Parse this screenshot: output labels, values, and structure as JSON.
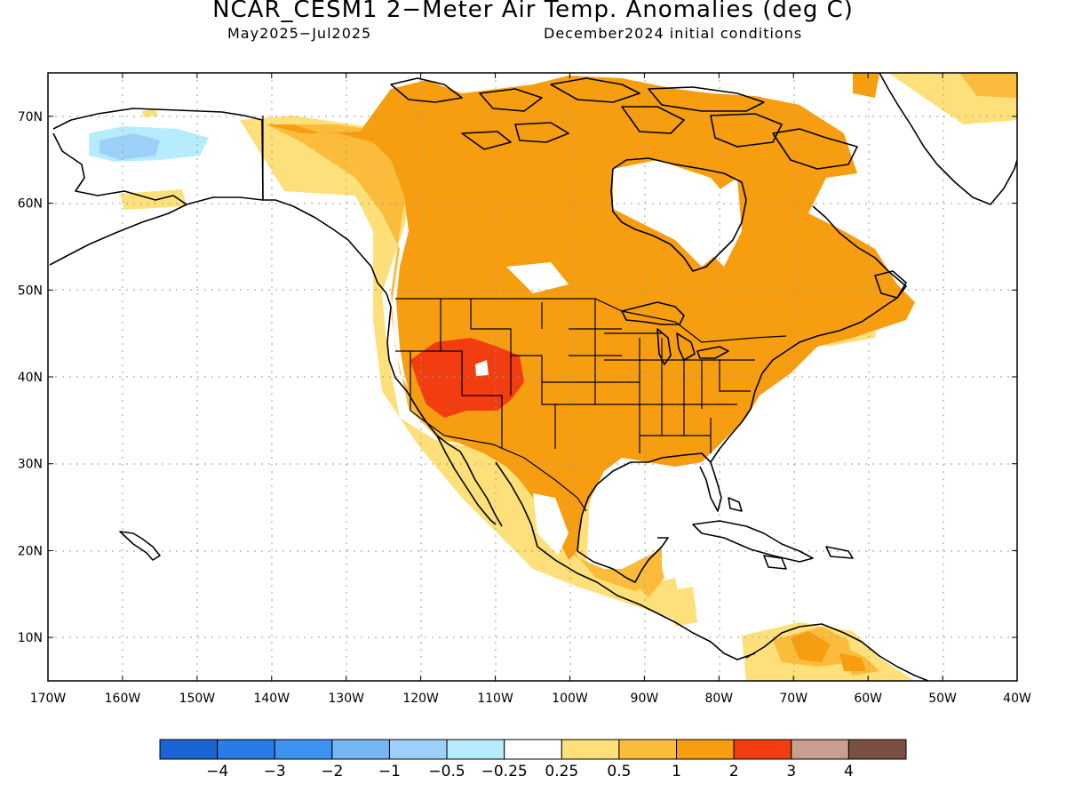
{
  "header": {
    "title": "NCAR_CESM1 2−Meter Air Temp. Anomalies (deg C)",
    "period": "May2025−Jul2025",
    "init": "December2024 initial conditions"
  },
  "axes": {
    "lon_labels": [
      "170W",
      "160W",
      "150W",
      "140W",
      "130W",
      "120W",
      "110W",
      "100W",
      "90W",
      "80W",
      "70W",
      "60W",
      "50W",
      "40W"
    ],
    "lat_labels": [
      "10N",
      "20N",
      "30N",
      "40N",
      "50N",
      "60N",
      "70N"
    ],
    "lon_range": [
      -170,
      -40
    ],
    "lat_range": [
      5,
      75
    ]
  },
  "colorbar": {
    "colors": [
      "#1a64d4",
      "#2a7ae8",
      "#3d93f2",
      "#77b6f5",
      "#9dd0f8",
      "#b6ecfb",
      "#ffffff",
      "#fde07a",
      "#fbbb3b",
      "#f79d10",
      "#f23d10",
      "#c89e8c",
      "#7a5040"
    ],
    "labels": [
      "−4",
      "−3",
      "−2",
      "−1",
      "−0.5",
      "−0.25",
      "0.25",
      "0.5",
      "1",
      "2",
      "3",
      "4"
    ]
  },
  "legend_colors": {
    "land_outline": "#000000",
    "grid": "#9a9a9a"
  }
}
